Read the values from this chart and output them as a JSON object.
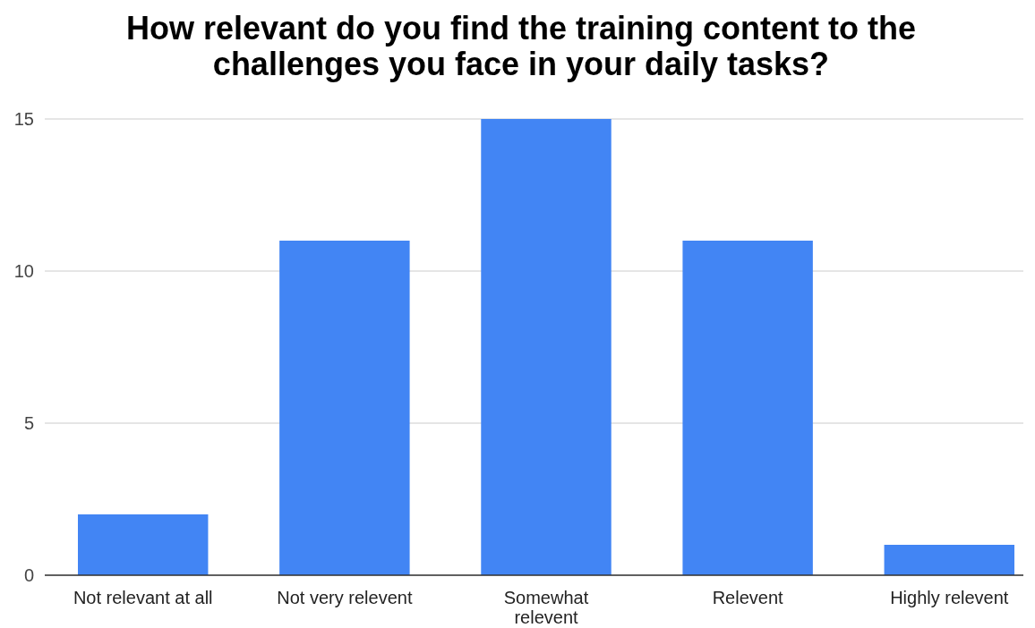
{
  "chart_data": {
    "type": "bar",
    "title": "How relevant do you find the training content to the challenges you face in your daily tasks?",
    "categories": [
      "Not relevant at all",
      "Not very relevent",
      "Somewhat relevent",
      "Relevent",
      "Highly relevent"
    ],
    "values": [
      2,
      11,
      15,
      11,
      1
    ],
    "color": "#4285f4",
    "ylim": [
      0,
      15
    ],
    "yticks": [
      0,
      5,
      10,
      15
    ],
    "grid": "y"
  }
}
